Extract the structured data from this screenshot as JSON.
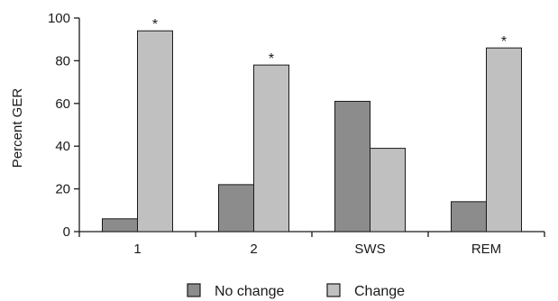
{
  "chart_data": {
    "type": "bar",
    "title": "",
    "xlabel": "",
    "ylabel": "Percent GER",
    "ylim": [
      0,
      100
    ],
    "yticks": [
      0,
      20,
      40,
      60,
      80,
      100
    ],
    "grid": false,
    "legend_placement": "bottom",
    "categories": [
      "1",
      "2",
      "SWS",
      "REM"
    ],
    "series": [
      {
        "name": "No change",
        "color": "#8c8c8c",
        "values": [
          6,
          22,
          61,
          14
        ]
      },
      {
        "name": "Change",
        "color": "#c0c0c0",
        "values": [
          94,
          78,
          39,
          86
        ]
      }
    ],
    "annotations": [
      {
        "category": "1",
        "series": "Change",
        "text": "*"
      },
      {
        "category": "2",
        "series": "Change",
        "text": "*"
      },
      {
        "category": "REM",
        "series": "Change",
        "text": "*"
      }
    ]
  }
}
